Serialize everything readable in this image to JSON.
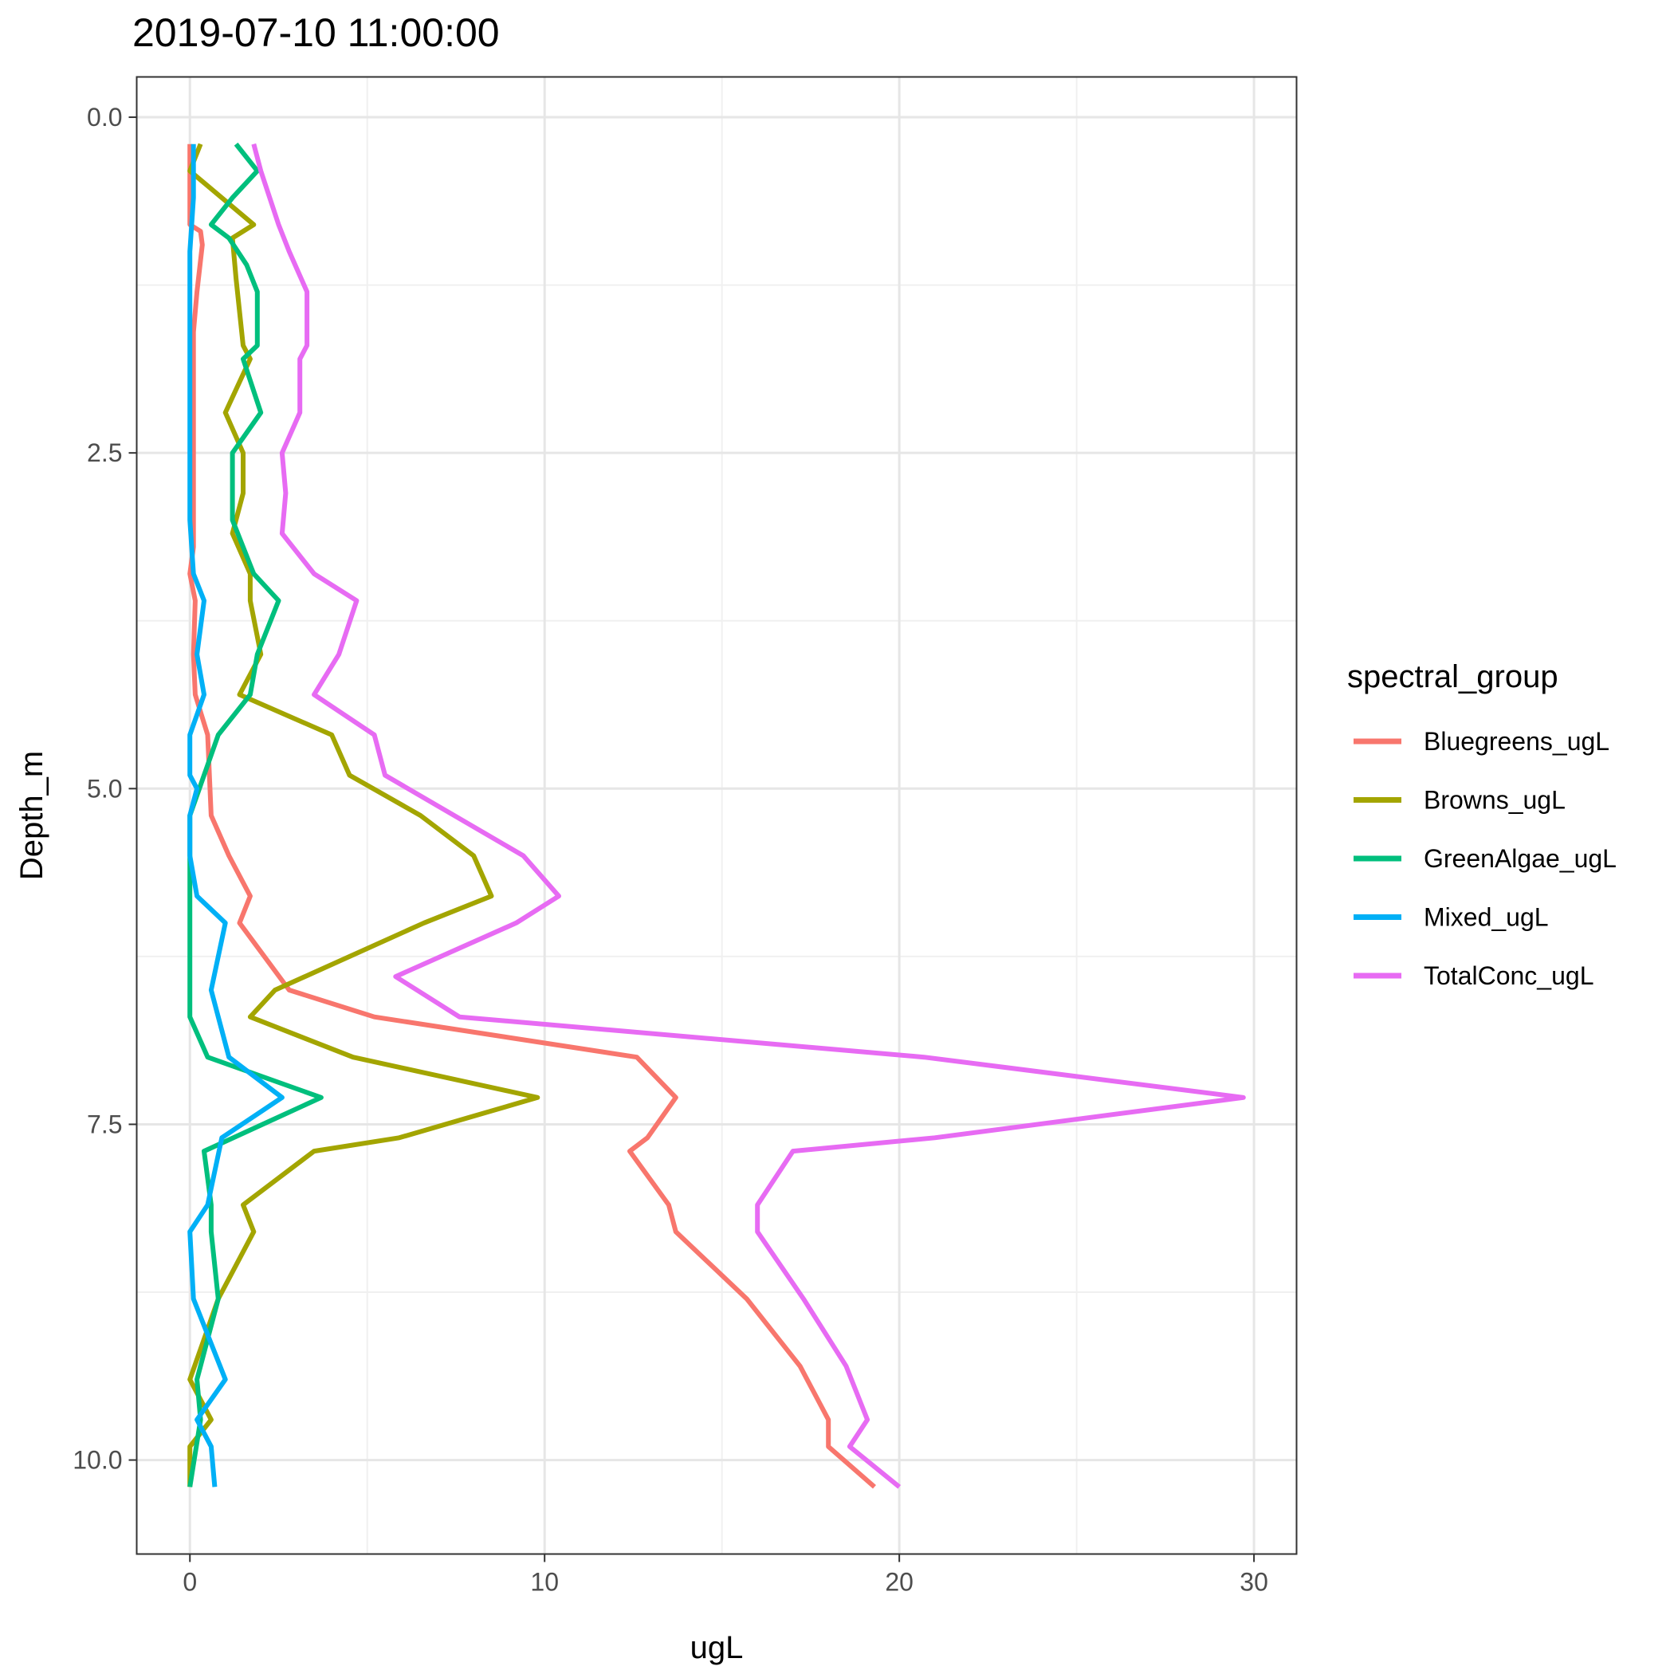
{
  "chart_data": {
    "type": "line",
    "title": "2019-07-10 11:00:00",
    "xlabel": "ugL",
    "ylabel": "Depth_m",
    "xlim": [
      -1.5,
      31.2
    ],
    "ylim": [
      -0.3,
      10.7
    ],
    "y_reversed": true,
    "grid": true,
    "x_ticks": [
      0,
      10,
      20,
      30
    ],
    "x_tick_labels": [
      "0",
      "10",
      "20",
      "30"
    ],
    "y_ticks": [
      0,
      2.5,
      5,
      7.5,
      10
    ],
    "y_tick_labels": [
      "0.0",
      "2.5",
      "5.0",
      "7.5",
      "10.0"
    ],
    "legend": {
      "title": "spectral_group",
      "placement": "right"
    },
    "series": [
      {
        "name": "Bluegreens_ugL",
        "color": "#F8766D",
        "points": [
          [
            0.0,
            0.2
          ],
          [
            0.0,
            0.4
          ],
          [
            0.0,
            0.6
          ],
          [
            0.0,
            0.8
          ],
          [
            0.3,
            0.85
          ],
          [
            0.35,
            0.95
          ],
          [
            0.2,
            1.3
          ],
          [
            0.1,
            1.6
          ],
          [
            0.1,
            2.0
          ],
          [
            0.1,
            2.5
          ],
          [
            0.1,
            3.0
          ],
          [
            0.1,
            3.2
          ],
          [
            0.0,
            3.4
          ],
          [
            0.15,
            3.6
          ],
          [
            0.1,
            4.0
          ],
          [
            0.15,
            4.3
          ],
          [
            0.5,
            4.6
          ],
          [
            0.6,
            5.2
          ],
          [
            1.1,
            5.5
          ],
          [
            1.7,
            5.8
          ],
          [
            1.4,
            6.0
          ],
          [
            2.8,
            6.5
          ],
          [
            5.2,
            6.7
          ],
          [
            12.6,
            7.0
          ],
          [
            13.7,
            7.3
          ],
          [
            12.9,
            7.6
          ],
          [
            12.4,
            7.7
          ],
          [
            13.5,
            8.1
          ],
          [
            13.7,
            8.3
          ],
          [
            15.7,
            8.8
          ],
          [
            17.2,
            9.3
          ],
          [
            18.0,
            9.7
          ],
          [
            18.0,
            9.9
          ],
          [
            19.3,
            10.2
          ]
        ]
      },
      {
        "name": "Browns_ugL",
        "color": "#A3A500",
        "points": [
          [
            0.3,
            0.2
          ],
          [
            0.0,
            0.4
          ],
          [
            1.8,
            0.8
          ],
          [
            1.2,
            0.9
          ],
          [
            1.3,
            1.2
          ],
          [
            1.5,
            1.7
          ],
          [
            1.7,
            1.8
          ],
          [
            1.0,
            2.2
          ],
          [
            1.5,
            2.5
          ],
          [
            1.5,
            2.8
          ],
          [
            1.2,
            3.1
          ],
          [
            1.7,
            3.4
          ],
          [
            1.7,
            3.6
          ],
          [
            2.0,
            4.0
          ],
          [
            1.4,
            4.3
          ],
          [
            4.0,
            4.6
          ],
          [
            4.5,
            4.9
          ],
          [
            6.5,
            5.2
          ],
          [
            8.0,
            5.5
          ],
          [
            8.5,
            5.8
          ],
          [
            6.6,
            6.0
          ],
          [
            2.4,
            6.5
          ],
          [
            1.7,
            6.7
          ],
          [
            4.6,
            7.0
          ],
          [
            9.8,
            7.3
          ],
          [
            5.9,
            7.6
          ],
          [
            3.5,
            7.7
          ],
          [
            1.5,
            8.1
          ],
          [
            1.8,
            8.3
          ],
          [
            0.8,
            8.8
          ],
          [
            0.0,
            9.4
          ],
          [
            0.6,
            9.7
          ],
          [
            0.0,
            9.9
          ],
          [
            0.0,
            10.2
          ]
        ]
      },
      {
        "name": "GreenAlgae_ugL",
        "color": "#00BF7D",
        "points": [
          [
            1.3,
            0.2
          ],
          [
            1.9,
            0.4
          ],
          [
            1.2,
            0.6
          ],
          [
            0.6,
            0.8
          ],
          [
            1.1,
            0.9
          ],
          [
            1.6,
            1.1
          ],
          [
            1.9,
            1.3
          ],
          [
            1.9,
            1.7
          ],
          [
            1.5,
            1.8
          ],
          [
            2.0,
            2.2
          ],
          [
            1.2,
            2.5
          ],
          [
            1.2,
            3.0
          ],
          [
            1.8,
            3.4
          ],
          [
            2.5,
            3.6
          ],
          [
            1.9,
            4.0
          ],
          [
            1.7,
            4.3
          ],
          [
            0.8,
            4.6
          ],
          [
            0.0,
            5.2
          ],
          [
            0.0,
            5.5
          ],
          [
            0.0,
            5.8
          ],
          [
            0.0,
            6.0
          ],
          [
            0.0,
            6.5
          ],
          [
            0.0,
            6.7
          ],
          [
            0.5,
            7.0
          ],
          [
            3.7,
            7.3
          ],
          [
            0.4,
            7.7
          ],
          [
            0.6,
            8.1
          ],
          [
            0.6,
            8.3
          ],
          [
            0.8,
            8.8
          ],
          [
            0.2,
            9.4
          ],
          [
            0.3,
            9.7
          ],
          [
            0.0,
            10.2
          ]
        ]
      },
      {
        "name": "Mixed_ugL",
        "color": "#00B0F6",
        "points": [
          [
            0.1,
            0.2
          ],
          [
            0.1,
            0.6
          ],
          [
            0.0,
            1.0
          ],
          [
            0.0,
            1.6
          ],
          [
            0.0,
            2.0
          ],
          [
            0.0,
            2.5
          ],
          [
            0.0,
            3.0
          ],
          [
            0.1,
            3.4
          ],
          [
            0.4,
            3.6
          ],
          [
            0.2,
            4.0
          ],
          [
            0.4,
            4.3
          ],
          [
            0.0,
            4.6
          ],
          [
            0.0,
            4.9
          ],
          [
            0.2,
            5.0
          ],
          [
            0.0,
            5.2
          ],
          [
            0.0,
            5.5
          ],
          [
            0.2,
            5.8
          ],
          [
            1.0,
            6.0
          ],
          [
            0.6,
            6.5
          ],
          [
            0.8,
            6.7
          ],
          [
            1.1,
            7.0
          ],
          [
            2.6,
            7.3
          ],
          [
            0.9,
            7.6
          ],
          [
            0.5,
            8.1
          ],
          [
            0.0,
            8.3
          ],
          [
            0.1,
            8.8
          ],
          [
            1.0,
            9.4
          ],
          [
            0.2,
            9.7
          ],
          [
            0.6,
            9.9
          ],
          [
            0.7,
            10.2
          ]
        ]
      },
      {
        "name": "TotalConc_ugL",
        "color": "#E76BF3",
        "points": [
          [
            1.8,
            0.2
          ],
          [
            2.0,
            0.4
          ],
          [
            2.5,
            0.8
          ],
          [
            2.8,
            1.0
          ],
          [
            3.3,
            1.3
          ],
          [
            3.3,
            1.7
          ],
          [
            3.1,
            1.8
          ],
          [
            3.1,
            2.2
          ],
          [
            2.6,
            2.5
          ],
          [
            2.7,
            2.8
          ],
          [
            2.6,
            3.1
          ],
          [
            3.5,
            3.4
          ],
          [
            4.7,
            3.6
          ],
          [
            4.2,
            4.0
          ],
          [
            3.5,
            4.3
          ],
          [
            5.2,
            4.6
          ],
          [
            5.5,
            4.9
          ],
          [
            9.4,
            5.5
          ],
          [
            10.4,
            5.8
          ],
          [
            9.2,
            6.0
          ],
          [
            5.8,
            6.4
          ],
          [
            7.6,
            6.7
          ],
          [
            20.7,
            7.0
          ],
          [
            29.7,
            7.3
          ],
          [
            21.0,
            7.6
          ],
          [
            17.0,
            7.7
          ],
          [
            16.0,
            8.1
          ],
          [
            16.0,
            8.3
          ],
          [
            17.3,
            8.8
          ],
          [
            18.5,
            9.3
          ],
          [
            19.1,
            9.7
          ],
          [
            18.6,
            9.9
          ],
          [
            20.0,
            10.2
          ]
        ]
      }
    ]
  }
}
